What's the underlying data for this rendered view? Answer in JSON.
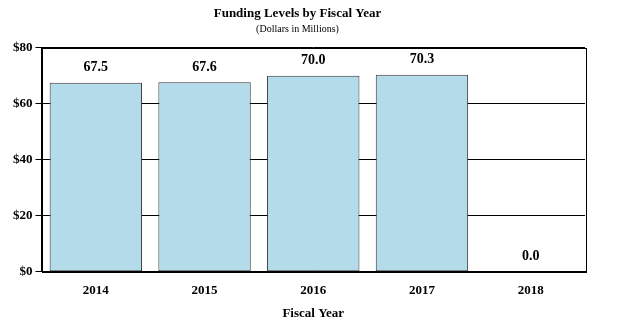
{
  "chart_data": {
    "type": "bar",
    "title": "Funding Levels by Fiscal Year",
    "subtitle": "(Dollars in Millions)",
    "x_label": "Fiscal Year",
    "categories": [
      "2014",
      "2015",
      "2016",
      "2017",
      "2018"
    ],
    "values": [
      67.5,
      67.6,
      70.0,
      70.3,
      0.0
    ],
    "value_labels": [
      "67.5",
      "67.6",
      "70.0",
      "70.3",
      "0.0"
    ],
    "data_labels": true,
    "color": "#b3dbe9",
    "ylim": [
      0,
      80
    ],
    "yticks": [
      {
        "value": 0,
        "label": "$0"
      },
      {
        "value": 20,
        "label": "$20"
      },
      {
        "value": 40,
        "label": "$40"
      },
      {
        "value": 60,
        "label": "$60"
      },
      {
        "value": 80,
        "label": "$80"
      }
    ],
    "grid": true
  }
}
